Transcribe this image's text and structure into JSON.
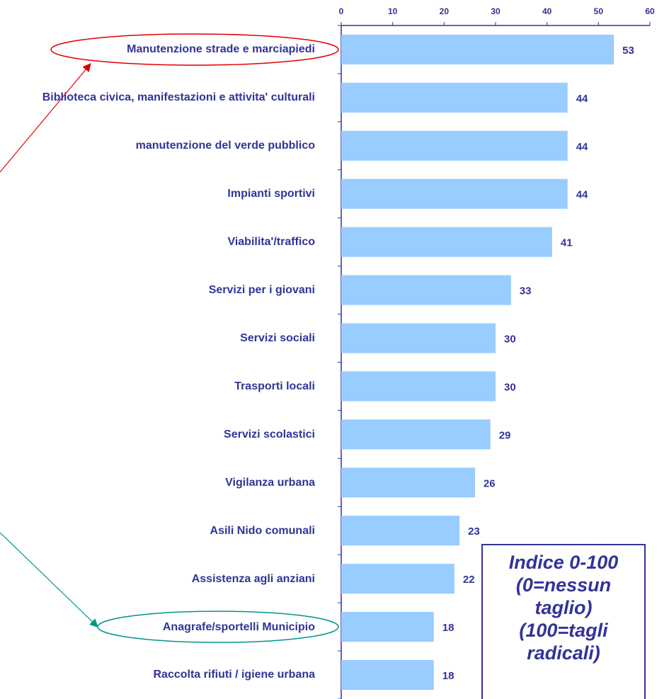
{
  "chart_data": {
    "type": "barh",
    "categories": [
      "Manutenzione strade e marciapiedi",
      "Biblioteca civica, manifestazioni e attivita' culturali",
      "manutenzione del verde pubblico",
      "Impianti sportivi",
      "Viabilita'/traffico",
      "Servizi per i giovani",
      "Servizi sociali",
      "Trasporti locali",
      "Servizi scolastici",
      "Vigilanza urbana",
      "Asili Nido comunali",
      "Assistenza agli anziani",
      "Anagrafe/sportelli Municipio",
      "Raccolta rifiuti / igiene urbana"
    ],
    "values": [
      53,
      44,
      44,
      44,
      41,
      33,
      30,
      30,
      29,
      26,
      23,
      22,
      18,
      18
    ],
    "color": "#99ccff",
    "xlim": [
      0,
      60
    ],
    "xticks": [
      0,
      10,
      20,
      30,
      40,
      50,
      60
    ],
    "annotation": [
      "Indice 0-100",
      "(0=nessun",
      "taglio)",
      "(100=tagli",
      "radicali)"
    ]
  }
}
